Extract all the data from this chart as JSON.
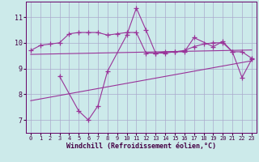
{
  "xlabel": "Windchill (Refroidissement éolien,°C)",
  "bg_color": "#cceaea",
  "grid_color": "#aaaacc",
  "line_color": "#993399",
  "xlim": [
    -0.5,
    23.5
  ],
  "ylim": [
    6.5,
    11.6
  ],
  "yticks": [
    7,
    8,
    9,
    10,
    11
  ],
  "xticks": [
    0,
    1,
    2,
    3,
    4,
    5,
    6,
    7,
    8,
    9,
    10,
    11,
    12,
    13,
    14,
    15,
    16,
    17,
    18,
    19,
    20,
    21,
    22,
    23
  ],
  "line1_x": [
    0,
    1,
    2,
    3,
    4,
    5,
    6,
    7,
    8,
    9,
    10,
    11,
    12,
    13,
    14,
    15,
    16,
    17,
    18,
    19,
    20,
    21,
    22,
    23
  ],
  "line1_y": [
    9.7,
    9.9,
    9.95,
    10.0,
    10.35,
    10.4,
    10.4,
    10.4,
    10.3,
    10.35,
    10.4,
    10.4,
    9.6,
    9.6,
    9.65,
    9.65,
    9.7,
    9.85,
    9.95,
    10.0,
    10.0,
    9.65,
    9.65,
    9.4
  ],
  "line2_x": [
    3,
    5,
    6,
    7,
    8,
    10,
    11,
    12,
    13,
    14,
    15,
    16,
    17,
    19,
    20,
    21,
    22,
    23
  ],
  "line2_y": [
    8.7,
    7.35,
    7.0,
    7.55,
    8.9,
    10.3,
    11.35,
    10.5,
    9.6,
    9.6,
    9.65,
    9.65,
    10.2,
    9.85,
    10.05,
    9.65,
    8.65,
    9.35
  ],
  "trend1_x": [
    0,
    23
  ],
  "trend1_y": [
    9.55,
    9.72
  ],
  "trend2_x": [
    0,
    23
  ],
  "trend2_y": [
    7.75,
    9.3
  ],
  "label_fontsize": 6.0,
  "tick_fontsize": 6.0,
  "xtick_fontsize": 5.0
}
